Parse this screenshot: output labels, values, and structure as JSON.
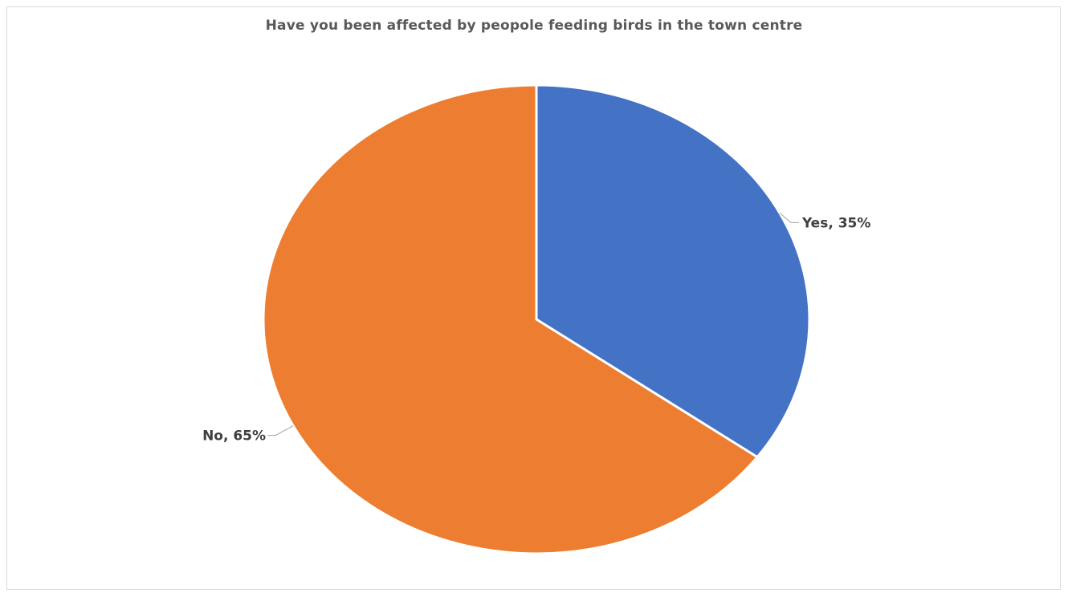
{
  "chart_data": {
    "type": "pie",
    "title": "Have you been affected by peopole feeding birds in the town centre",
    "categories": [
      "Yes",
      "No"
    ],
    "values": [
      35,
      65
    ],
    "unit": "%",
    "labels": [
      "Yes, 35%",
      "No, 65%"
    ],
    "colors": [
      "#4472C4",
      "#ED7D31"
    ],
    "legend": "none",
    "start_angle_deg": 0,
    "direction": "clockwise"
  }
}
